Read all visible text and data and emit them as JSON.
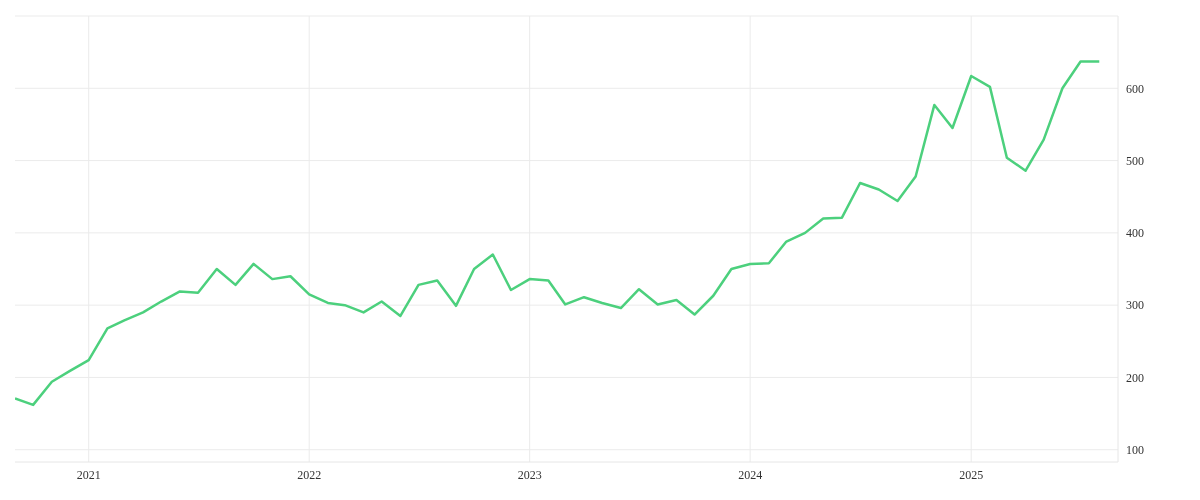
{
  "chart_data": {
    "type": "line",
    "x": [
      "2020-09",
      "2020-10",
      "2020-11",
      "2020-12",
      "2021-01",
      "2021-02",
      "2021-03",
      "2021-04",
      "2021-05",
      "2021-06",
      "2021-07",
      "2021-08",
      "2021-09",
      "2021-10",
      "2021-11",
      "2021-12",
      "2022-01",
      "2022-02",
      "2022-03",
      "2022-04",
      "2022-05",
      "2022-06",
      "2022-07",
      "2022-08",
      "2022-09",
      "2022-10",
      "2022-11",
      "2022-12",
      "2023-01",
      "2023-02",
      "2023-03",
      "2023-04",
      "2023-05",
      "2023-06",
      "2023-07",
      "2023-08",
      "2023-09",
      "2023-10",
      "2023-11",
      "2023-12",
      "2024-01",
      "2024-02",
      "2024-03",
      "2024-04",
      "2024-05",
      "2024-06",
      "2024-07",
      "2024-08",
      "2024-09",
      "2024-10",
      "2024-11",
      "2024-12",
      "2025-01",
      "2025-02",
      "2025-03",
      "2025-04",
      "2025-05",
      "2025-06",
      "2025-07",
      "2025-08"
    ],
    "series": [
      {
        "color": "#4cd07d",
        "values": [
          171,
          162,
          194,
          209,
          224,
          268,
          279,
          290,
          305,
          319,
          317,
          350,
          328,
          357,
          336,
          340,
          315,
          303,
          300,
          290,
          305,
          285,
          328,
          334,
          299,
          350,
          370,
          321,
          336,
          334,
          301,
          311,
          303,
          296,
          322,
          301,
          307,
          287,
          313,
          350,
          357,
          358,
          388,
          400,
          420,
          421,
          469,
          460,
          444,
          478,
          577,
          545,
          617,
          602,
          504,
          486,
          529,
          600,
          637,
          637
        ]
      }
    ],
    "xlim": [
      "2020-09",
      "2025-09"
    ],
    "xticks": [
      {
        "value": "2021",
        "label": "2021"
      },
      {
        "value": "2022",
        "label": "2022"
      },
      {
        "value": "2023",
        "label": "2023"
      },
      {
        "value": "2024",
        "label": "2024"
      },
      {
        "value": "2025",
        "label": "2025"
      }
    ],
    "ylim": [
      83,
      700
    ],
    "yticks": [
      100,
      200,
      300,
      400,
      500,
      600,
      {
        "value": 700,
        "label": null
      }
    ],
    "grid": true,
    "legend": false,
    "marker": "none",
    "line_style": "solid"
  }
}
